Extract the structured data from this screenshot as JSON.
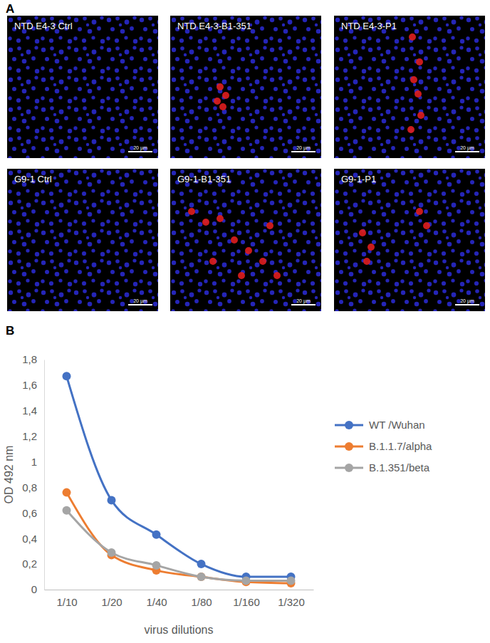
{
  "panel_labels": [
    "A",
    "B"
  ],
  "images": [
    {
      "label": "NTD E4-3 Ctrl",
      "scale_bar": "20 µm"
    },
    {
      "label": "NTD E4-3-B1-351",
      "scale_bar": "20 µm"
    },
    {
      "label": "NTD E4-3-P1",
      "scale_bar": "20 µm"
    },
    {
      "label": "G9-1 Ctrl",
      "scale_bar": "20 µm"
    },
    {
      "label": "G9-1-B1-351",
      "scale_bar": "20 µm"
    },
    {
      "label": "G9-1-P1",
      "scale_bar": "20 µm"
    }
  ],
  "chart_data": {
    "type": "line",
    "x_label": "virus dilutions",
    "y_label": "OD 492 nm",
    "categories": [
      "1/10",
      "1/20",
      "1/40",
      "1/80",
      "1/160",
      "1/320"
    ],
    "series": [
      {
        "name": "WT /Wuhan",
        "color": "#4472c4",
        "values": [
          1.67,
          0.7,
          0.43,
          0.2,
          0.1,
          0.1
        ]
      },
      {
        "name": "B.1.1.7/alpha",
        "color": "#ed7d31",
        "values": [
          0.76,
          0.27,
          0.15,
          0.1,
          0.06,
          0.05
        ]
      },
      {
        "name": "B.1.351/beta",
        "color": "#a5a5a5",
        "values": [
          0.62,
          0.29,
          0.19,
          0.1,
          0.07,
          0.07
        ]
      }
    ],
    "ylim": [
      0,
      1.8
    ],
    "yticks": [
      0,
      {
        "value": 0.2,
        "label": "0,2"
      },
      {
        "value": 0.4,
        "label": "0,4"
      },
      {
        "value": 0.6,
        "label": "0,6"
      },
      {
        "value": 0.8,
        "label": "0,8"
      },
      1,
      {
        "value": 1.2,
        "label": "1,2"
      },
      {
        "value": 1.4,
        "label": "1,4"
      },
      {
        "value": 1.6,
        "label": "1,6"
      },
      {
        "value": 1.8,
        "label": "1,8"
      }
    ],
    "marker": "circle",
    "legend": "right",
    "grid": false
  }
}
